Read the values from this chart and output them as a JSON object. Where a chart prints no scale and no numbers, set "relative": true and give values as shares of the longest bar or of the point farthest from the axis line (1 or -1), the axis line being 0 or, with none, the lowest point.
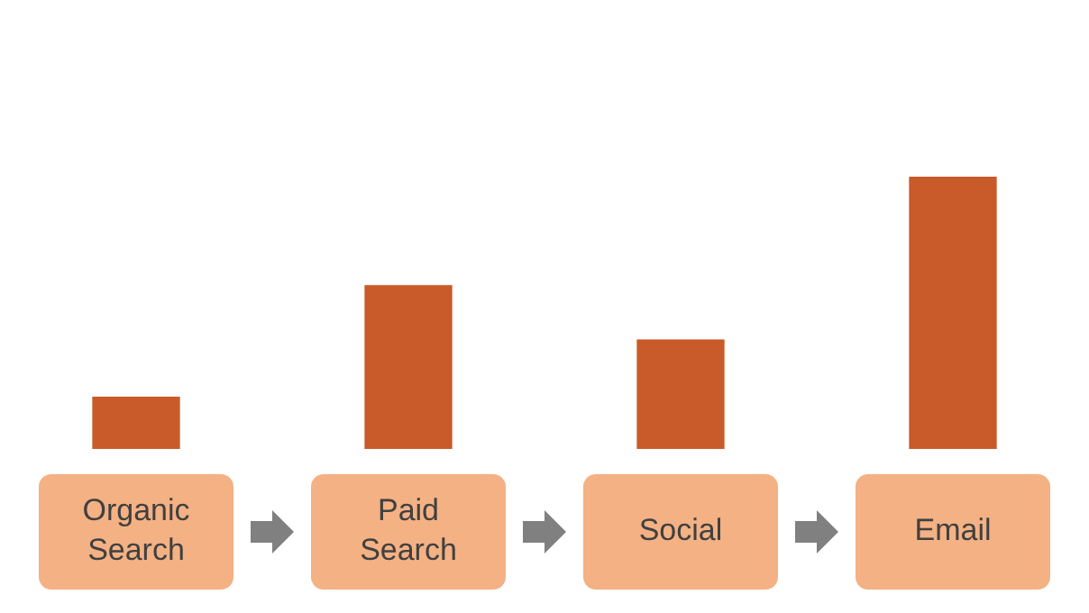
{
  "chart_data": {
    "type": "bar",
    "categories": [
      "Organic Search",
      "Paid Search",
      "Social",
      "Email"
    ],
    "values": [
      0.19,
      0.6,
      0.4,
      1
    ],
    "color": "#c95b2a",
    "relative": true
  }
}
